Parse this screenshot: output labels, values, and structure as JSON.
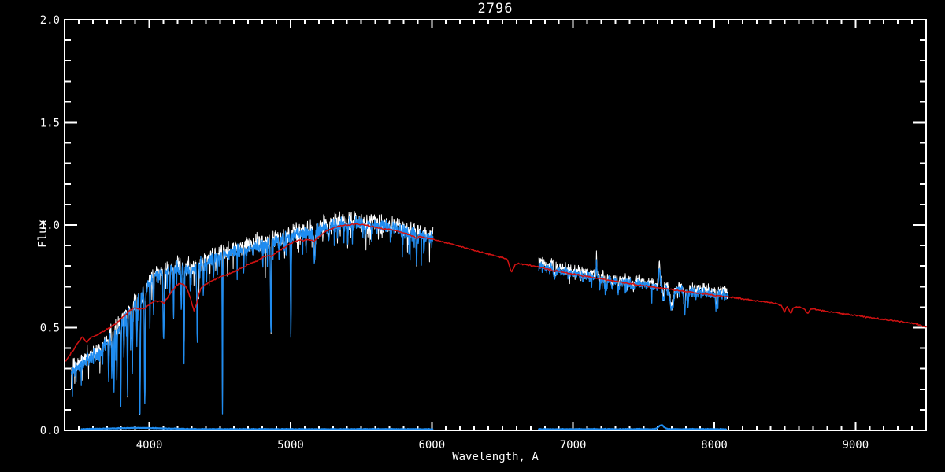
{
  "window": {
    "background": "#000000"
  },
  "chart_data": {
    "type": "line",
    "title": "2796",
    "xlabel": "Wavelength, A",
    "ylabel": "Flux",
    "xlim": [
      3400,
      9500
    ],
    "ylim": [
      0.0,
      2.0
    ],
    "x_major_ticks": [
      4000,
      5000,
      6000,
      7000,
      8000,
      9000
    ],
    "x_tick_labels": [
      "4000",
      "5000",
      "6000",
      "7000",
      "8000",
      "9000"
    ],
    "x_minor_step": 100,
    "y_major_ticks": [
      0.0,
      0.5,
      1.0,
      1.5,
      2.0
    ],
    "y_tick_labels": [
      "0.0",
      "0.5",
      "1.0",
      "1.5",
      "2.0"
    ],
    "y_minor_step": 0.1,
    "background": "#000000",
    "axis_color": "#ffffff",
    "legend": "none",
    "grid": false,
    "observed_segments": [
      {
        "range": [
          3448,
          6008
        ],
        "noise": 0.016,
        "spike_prob": 0.085,
        "spike_max": 0.14
      },
      {
        "range": [
          6758,
          8098
        ],
        "noise": 0.011,
        "spike_prob": 0.05,
        "spike_max": 0.07
      }
    ],
    "observed_continuum": [
      [
        3448,
        0.285
      ],
      [
        3470,
        0.3
      ],
      [
        3500,
        0.315
      ],
      [
        3530,
        0.33
      ],
      [
        3560,
        0.345
      ],
      [
        3590,
        0.35
      ],
      [
        3620,
        0.36
      ],
      [
        3650,
        0.38
      ],
      [
        3680,
        0.405
      ],
      [
        3710,
        0.43
      ],
      [
        3740,
        0.46
      ],
      [
        3770,
        0.485
      ],
      [
        3800,
        0.515
      ],
      [
        3830,
        0.545
      ],
      [
        3860,
        0.575
      ],
      [
        3890,
        0.605
      ],
      [
        3920,
        0.635
      ],
      [
        3950,
        0.655
      ],
      [
        3975,
        0.685
      ],
      [
        4000,
        0.72
      ],
      [
        4030,
        0.745
      ],
      [
        4060,
        0.76
      ],
      [
        4090,
        0.765
      ],
      [
        4120,
        0.775
      ],
      [
        4150,
        0.78
      ],
      [
        4180,
        0.787
      ],
      [
        4210,
        0.79
      ],
      [
        4240,
        0.792
      ],
      [
        4270,
        0.79
      ],
      [
        4300,
        0.785
      ],
      [
        4330,
        0.79
      ],
      [
        4360,
        0.8
      ],
      [
        4400,
        0.82
      ],
      [
        4440,
        0.833
      ],
      [
        4480,
        0.843
      ],
      [
        4520,
        0.85
      ],
      [
        4560,
        0.857
      ],
      [
        4600,
        0.865
      ],
      [
        4650,
        0.875
      ],
      [
        4700,
        0.885
      ],
      [
        4750,
        0.893
      ],
      [
        4800,
        0.9
      ],
      [
        4850,
        0.91
      ],
      [
        4900,
        0.92
      ],
      [
        4950,
        0.933
      ],
      [
        5000,
        0.947
      ],
      [
        5050,
        0.958
      ],
      [
        5100,
        0.963
      ],
      [
        5150,
        0.957
      ],
      [
        5200,
        0.973
      ],
      [
        5250,
        0.988
      ],
      [
        5300,
        0.998
      ],
      [
        5350,
        1.0
      ],
      [
        5400,
        1.003
      ],
      [
        5450,
        1.008
      ],
      [
        5500,
        1.008
      ],
      [
        5550,
        1.003
      ],
      [
        5600,
        0.998
      ],
      [
        5650,
        0.993
      ],
      [
        5700,
        0.988
      ],
      [
        5750,
        0.982
      ],
      [
        5800,
        0.973
      ],
      [
        5850,
        0.963
      ],
      [
        5900,
        0.95
      ],
      [
        5950,
        0.945
      ],
      [
        6008,
        0.938
      ],
      [
        6758,
        0.8
      ],
      [
        6800,
        0.793
      ],
      [
        6850,
        0.786
      ],
      [
        6900,
        0.778
      ],
      [
        6950,
        0.77
      ],
      [
        7000,
        0.762
      ],
      [
        7050,
        0.754
      ],
      [
        7100,
        0.748
      ],
      [
        7150,
        0.744
      ],
      [
        7200,
        0.738
      ],
      [
        7250,
        0.731
      ],
      [
        7300,
        0.725
      ],
      [
        7350,
        0.72
      ],
      [
        7400,
        0.716
      ],
      [
        7450,
        0.712
      ],
      [
        7500,
        0.707
      ],
      [
        7550,
        0.702
      ],
      [
        7600,
        0.697
      ],
      [
        7650,
        0.692
      ],
      [
        7700,
        0.688
      ],
      [
        7750,
        0.684
      ],
      [
        7800,
        0.679
      ],
      [
        7850,
        0.675
      ],
      [
        7900,
        0.671
      ],
      [
        7950,
        0.668
      ],
      [
        8000,
        0.664
      ],
      [
        8050,
        0.66
      ],
      [
        8098,
        0.657
      ]
    ],
    "observed_lines": [
      [
        3712,
        0.22,
        2.2
      ],
      [
        3735,
        0.2,
        2.2
      ],
      [
        3750,
        0.29,
        2.2
      ],
      [
        3770,
        0.22,
        2.2
      ],
      [
        3798,
        0.38,
        2.2
      ],
      [
        3820,
        0.18,
        2.0
      ],
      [
        3846,
        0.38,
        2.2
      ],
      [
        3868,
        0.2,
        2.0
      ],
      [
        3880,
        0.33,
        2.2
      ],
      [
        3912,
        0.22,
        2.2
      ],
      [
        3933,
        0.6,
        3.0
      ],
      [
        3968,
        0.57,
        3.0
      ],
      [
        4005,
        0.14,
        2.2
      ],
      [
        4030,
        0.17,
        2.5
      ],
      [
        4101,
        0.34,
        3.5
      ],
      [
        4144,
        0.12,
        2.5
      ],
      [
        4172,
        0.24,
        2.2
      ],
      [
        4226,
        0.2,
        2.5
      ],
      [
        4246,
        0.45,
        2.2
      ],
      [
        4290,
        0.12,
        2.5
      ],
      [
        4340,
        0.36,
        3.5
      ],
      [
        4383,
        0.14,
        2.5
      ],
      [
        4405,
        0.1,
        2.0
      ],
      [
        4455,
        0.11,
        2.5
      ],
      [
        4481,
        0.1,
        2.0
      ],
      [
        4518,
        0.74,
        1.8
      ],
      [
        4668,
        0.09,
        2.5
      ],
      [
        4861,
        0.45,
        3.0
      ],
      [
        4920,
        0.1,
        2.5
      ],
      [
        4957,
        0.08,
        2.0
      ],
      [
        5002,
        0.5,
        2.5
      ],
      [
        5110,
        0.08,
        2.5
      ],
      [
        5170,
        0.15,
        4.5
      ],
      [
        5270,
        0.09,
        3.5
      ],
      [
        5332,
        0.07,
        2.5
      ],
      [
        5405,
        0.07,
        2.5
      ],
      [
        5528,
        0.07,
        3.0
      ],
      [
        5710,
        0.07,
        3.0
      ],
      [
        5892,
        0.14,
        3.0
      ],
      [
        6868,
        0.05,
        5.0
      ],
      [
        7166,
        -0.095,
        2.2
      ],
      [
        7190,
        0.05,
        3.0
      ],
      [
        7232,
        0.06,
        7.0
      ],
      [
        7278,
        0.04,
        5.0
      ],
      [
        7320,
        0.05,
        5.0
      ],
      [
        7430,
        0.035,
        4.0
      ],
      [
        7612,
        -0.1,
        5.0
      ],
      [
        7640,
        0.06,
        6.0
      ],
      [
        7700,
        0.1,
        12.0
      ],
      [
        7790,
        0.12,
        5.0
      ],
      [
        7815,
        0.09,
        3.0
      ],
      [
        7872,
        0.03,
        4.0
      ],
      [
        8013,
        0.065,
        3.5
      ]
    ],
    "model_anchors": [
      [
        3410,
        0.34
      ],
      [
        3425,
        0.355
      ],
      [
        3440,
        0.37
      ],
      [
        3455,
        0.385
      ],
      [
        3470,
        0.4
      ],
      [
        3485,
        0.415
      ],
      [
        3500,
        0.43
      ],
      [
        3515,
        0.447
      ],
      [
        3528,
        0.455
      ],
      [
        3542,
        0.44
      ],
      [
        3556,
        0.428
      ],
      [
        3572,
        0.44
      ],
      [
        3590,
        0.452
      ],
      [
        3610,
        0.458
      ],
      [
        3632,
        0.465
      ],
      [
        3655,
        0.474
      ],
      [
        3680,
        0.484
      ],
      [
        3705,
        0.494
      ],
      [
        3730,
        0.503
      ],
      [
        3755,
        0.515
      ],
      [
        3780,
        0.53
      ],
      [
        3805,
        0.547
      ],
      [
        3830,
        0.562
      ],
      [
        3855,
        0.578
      ],
      [
        3880,
        0.592
      ],
      [
        3905,
        0.598
      ],
      [
        3933,
        0.588
      ],
      [
        3950,
        0.598
      ],
      [
        3968,
        0.592
      ],
      [
        3985,
        0.605
      ],
      [
        4000,
        0.612
      ],
      [
        4020,
        0.622
      ],
      [
        4040,
        0.63
      ],
      [
        4060,
        0.625
      ],
      [
        4080,
        0.63
      ],
      [
        4101,
        0.618
      ],
      [
        4120,
        0.638
      ],
      [
        4145,
        0.662
      ],
      [
        4170,
        0.684
      ],
      [
        4195,
        0.705
      ],
      [
        4215,
        0.717
      ],
      [
        4235,
        0.712
      ],
      [
        4258,
        0.7
      ],
      [
        4278,
        0.672
      ],
      [
        4298,
        0.625
      ],
      [
        4316,
        0.582
      ],
      [
        4332,
        0.612
      ],
      [
        4348,
        0.655
      ],
      [
        4366,
        0.692
      ],
      [
        4385,
        0.706
      ],
      [
        4405,
        0.714
      ],
      [
        4430,
        0.724
      ],
      [
        4458,
        0.733
      ],
      [
        4486,
        0.742
      ],
      [
        4515,
        0.75
      ],
      [
        4545,
        0.757
      ],
      [
        4575,
        0.765
      ],
      [
        4605,
        0.774
      ],
      [
        4638,
        0.784
      ],
      [
        4670,
        0.795
      ],
      [
        4702,
        0.808
      ],
      [
        4735,
        0.818
      ],
      [
        4768,
        0.828
      ],
      [
        4800,
        0.84
      ],
      [
        4828,
        0.849
      ],
      [
        4848,
        0.852
      ],
      [
        4861,
        0.845
      ],
      [
        4878,
        0.856
      ],
      [
        4905,
        0.868
      ],
      [
        4932,
        0.88
      ],
      [
        4960,
        0.892
      ],
      [
        4988,
        0.905
      ],
      [
        5015,
        0.915
      ],
      [
        5042,
        0.922
      ],
      [
        5068,
        0.928
      ],
      [
        5092,
        0.924
      ],
      [
        5118,
        0.93
      ],
      [
        5145,
        0.926
      ],
      [
        5168,
        0.92
      ],
      [
        5192,
        0.938
      ],
      [
        5218,
        0.952
      ],
      [
        5245,
        0.965
      ],
      [
        5272,
        0.975
      ],
      [
        5300,
        0.985
      ],
      [
        5330,
        0.991
      ],
      [
        5360,
        0.996
      ],
      [
        5395,
        1.0
      ],
      [
        5430,
        1.002
      ],
      [
        5465,
        1.005
      ],
      [
        5500,
        1.002
      ],
      [
        5535,
        0.998
      ],
      [
        5570,
        0.993
      ],
      [
        5605,
        0.988
      ],
      [
        5640,
        0.984
      ],
      [
        5675,
        0.98
      ],
      [
        5710,
        0.976
      ],
      [
        5745,
        0.971
      ],
      [
        5780,
        0.966
      ],
      [
        5815,
        0.958
      ],
      [
        5850,
        0.95
      ],
      [
        5875,
        0.944
      ],
      [
        5894,
        0.936
      ],
      [
        5915,
        0.942
      ],
      [
        5945,
        0.94
      ],
      [
        5975,
        0.936
      ],
      [
        6010,
        0.93
      ],
      [
        6060,
        0.921
      ],
      [
        6110,
        0.912
      ],
      [
        6160,
        0.903
      ],
      [
        6210,
        0.894
      ],
      [
        6260,
        0.885
      ],
      [
        6310,
        0.875
      ],
      [
        6360,
        0.866
      ],
      [
        6410,
        0.857
      ],
      [
        6460,
        0.848
      ],
      [
        6505,
        0.84
      ],
      [
        6535,
        0.832
      ],
      [
        6563,
        0.768
      ],
      [
        6590,
        0.806
      ],
      [
        6620,
        0.812
      ],
      [
        6660,
        0.808
      ],
      [
        6705,
        0.802
      ],
      [
        6750,
        0.796
      ],
      [
        6795,
        0.79
      ],
      [
        6840,
        0.783
      ],
      [
        6862,
        0.773
      ],
      [
        6885,
        0.778
      ],
      [
        6930,
        0.77
      ],
      [
        6975,
        0.764
      ],
      [
        7020,
        0.758
      ],
      [
        7065,
        0.752
      ],
      [
        7110,
        0.747
      ],
      [
        7155,
        0.742
      ],
      [
        7200,
        0.737
      ],
      [
        7245,
        0.732
      ],
      [
        7290,
        0.727
      ],
      [
        7335,
        0.722
      ],
      [
        7380,
        0.717
      ],
      [
        7425,
        0.712
      ],
      [
        7470,
        0.707
      ],
      [
        7515,
        0.703
      ],
      [
        7560,
        0.698
      ],
      [
        7605,
        0.694
      ],
      [
        7650,
        0.69
      ],
      [
        7695,
        0.686
      ],
      [
        7740,
        0.681
      ],
      [
        7785,
        0.677
      ],
      [
        7830,
        0.673
      ],
      [
        7875,
        0.669
      ],
      [
        7920,
        0.665
      ],
      [
        7965,
        0.661
      ],
      [
        8010,
        0.657
      ],
      [
        8055,
        0.653
      ],
      [
        8100,
        0.649
      ],
      [
        8150,
        0.645
      ],
      [
        8200,
        0.64
      ],
      [
        8250,
        0.636
      ],
      [
        8300,
        0.631
      ],
      [
        8350,
        0.627
      ],
      [
        8400,
        0.622
      ],
      [
        8445,
        0.617
      ],
      [
        8475,
        0.608
      ],
      [
        8498,
        0.578
      ],
      [
        8516,
        0.602
      ],
      [
        8542,
        0.568
      ],
      [
        8562,
        0.598
      ],
      [
        8600,
        0.601
      ],
      [
        8635,
        0.594
      ],
      [
        8662,
        0.568
      ],
      [
        8684,
        0.592
      ],
      [
        8725,
        0.588
      ],
      [
        8770,
        0.583
      ],
      [
        8815,
        0.578
      ],
      [
        8860,
        0.574
      ],
      [
        8905,
        0.569
      ],
      [
        8950,
        0.565
      ],
      [
        9000,
        0.56
      ],
      [
        9050,
        0.555
      ],
      [
        9100,
        0.55
      ],
      [
        9150,
        0.545
      ],
      [
        9200,
        0.54
      ],
      [
        9250,
        0.536
      ],
      [
        9300,
        0.531
      ],
      [
        9350,
        0.526
      ],
      [
        9400,
        0.521
      ],
      [
        9450,
        0.514
      ],
      [
        9500,
        0.505
      ]
    ],
    "error_segments": [
      [
        3520,
        6005
      ],
      [
        6758,
        8085
      ]
    ],
    "error_level": 0.006,
    "error_bumps": [
      [
        3920,
        0.006,
        180
      ],
      [
        7625,
        0.02,
        18
      ]
    ],
    "series": [
      {
        "name": "observed-spectrum-white",
        "kind": "noisy",
        "color": "#ffffff",
        "width": 1.0,
        "seed": 11,
        "offset": 0.015,
        "noise_scale": 1.3
      },
      {
        "name": "observed-spectrum-blue",
        "kind": "noisy",
        "color": "#1f8cf0",
        "width": 1.3,
        "seed": 5,
        "offset": 0.0,
        "noise_scale": 1.0
      },
      {
        "name": "model-spectrum-red",
        "kind": "smooth",
        "color": "#d21212",
        "width": 1.5,
        "seed": 2,
        "jitter": 0.0035
      },
      {
        "name": "error-spectrum-blue",
        "kind": "flat",
        "color": "#1f8cf0",
        "width": 2.2,
        "seed": 9,
        "noise": 0.0015
      }
    ]
  }
}
